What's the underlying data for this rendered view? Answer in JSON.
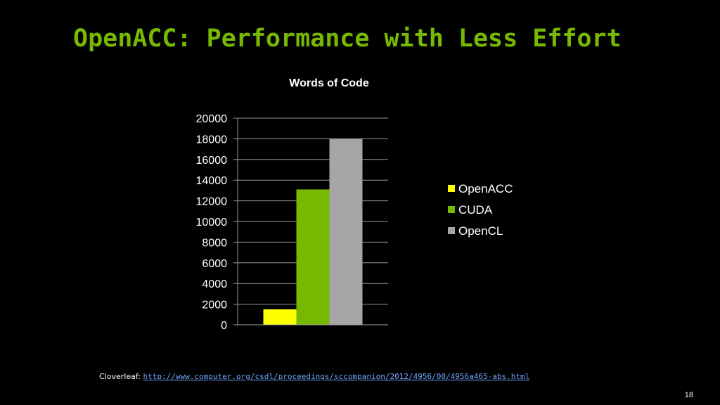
{
  "slide": {
    "title": "OpenACC: Performance with Less Effort",
    "title_color": "#76b900",
    "page_number": "18"
  },
  "footer": {
    "label": "Cloverleaf:",
    "link_text": "http://www.computer.org/csdl/proceedings/sccompanion/2012/4956/00/4956a465-abs.html",
    "link_color": "#6fa8ff"
  },
  "chart_data": {
    "type": "bar",
    "title": "Words of Code",
    "xlabel": "",
    "ylabel": "",
    "categories": [
      ""
    ],
    "series": [
      {
        "name": "OpenACC",
        "values": [
          1500
        ],
        "color": "#ffff00"
      },
      {
        "name": "CUDA",
        "values": [
          13100
        ],
        "color": "#76b900"
      },
      {
        "name": "OpenCL",
        "values": [
          18000
        ],
        "color": "#a6a6a6"
      }
    ],
    "ylim": [
      0,
      20000
    ],
    "yticks": [
      0,
      2000,
      4000,
      6000,
      8000,
      10000,
      12000,
      14000,
      16000,
      18000,
      20000
    ],
    "grid": true,
    "legend_position": "right"
  }
}
